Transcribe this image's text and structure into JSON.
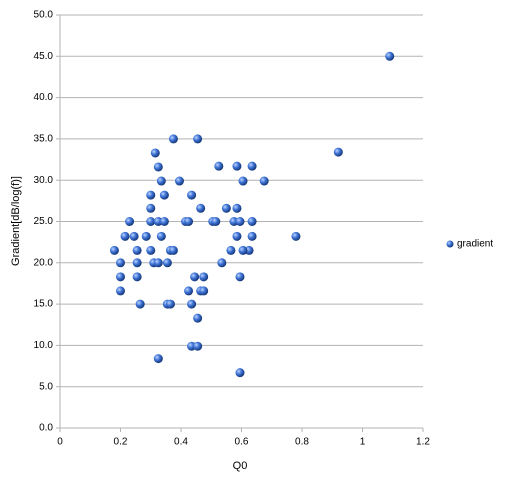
{
  "chart_data": {
    "type": "scatter",
    "x_label": "Q0",
    "y_label": "Gradient[dB/log(f)]",
    "legend": "right",
    "grid": true,
    "color": "#2a5fc1",
    "series": [
      {
        "name": "gradient",
        "color": "#2a5fc1",
        "x": [
          1.09,
          0.92,
          0.78,
          0.675,
          0.635,
          0.585,
          0.525,
          0.605,
          0.585,
          0.55,
          0.635,
          0.575,
          0.595,
          0.505,
          0.515,
          0.585,
          0.635,
          0.625,
          0.605,
          0.565,
          0.535,
          0.595,
          0.595,
          0.455,
          0.375,
          0.315,
          0.325,
          0.335,
          0.395,
          0.3,
          0.345,
          0.435,
          0.3,
          0.465,
          0.23,
          0.3,
          0.325,
          0.345,
          0.415,
          0.425,
          0.215,
          0.245,
          0.285,
          0.335,
          0.18,
          0.255,
          0.3,
          0.365,
          0.375,
          0.2,
          0.255,
          0.31,
          0.325,
          0.355,
          0.2,
          0.255,
          0.445,
          0.475,
          0.2,
          0.425,
          0.465,
          0.475,
          0.265,
          0.355,
          0.365,
          0.435,
          0.455,
          0.325,
          0.435,
          0.455
        ],
        "values": [
          45,
          33.4,
          23.2,
          29.9,
          31.7,
          31.7,
          31.7,
          29.9,
          26.6,
          26.6,
          25,
          25,
          25,
          25,
          25,
          23.2,
          23.2,
          21.5,
          21.5,
          21.5,
          20,
          18.3,
          6.7,
          35,
          35,
          33.3,
          31.6,
          29.9,
          29.9,
          28.2,
          28.2,
          28.2,
          26.6,
          26.6,
          25,
          25,
          25,
          25,
          25,
          25,
          23.2,
          23.2,
          23.2,
          23.2,
          21.5,
          21.5,
          21.5,
          21.5,
          21.5,
          20,
          20,
          20,
          20,
          20,
          18.3,
          18.3,
          18.3,
          18.3,
          16.6,
          16.6,
          16.6,
          16.6,
          15,
          15,
          15,
          15,
          13.3,
          8.4,
          9.9,
          9.9
        ]
      }
    ],
    "xlim": [
      0,
      1.2
    ],
    "xticks": [
      0,
      0.2,
      0.4,
      0.6,
      0.8,
      1,
      1.2
    ],
    "ylim": [
      0,
      50
    ],
    "yticks": [
      {
        "value": 0,
        "label": "0.0"
      },
      {
        "value": 5,
        "label": "5.0"
      },
      {
        "value": 10,
        "label": "10.0"
      },
      {
        "value": 15,
        "label": "15.0"
      },
      {
        "value": 20,
        "label": "20.0"
      },
      {
        "value": 25,
        "label": "25.0"
      },
      {
        "value": 30,
        "label": "30.0"
      },
      {
        "value": 35,
        "label": "35.0"
      },
      {
        "value": 40,
        "label": "40.0"
      },
      {
        "value": 45,
        "label": "45.0"
      },
      {
        "value": 50,
        "label": "50.0"
      }
    ]
  }
}
